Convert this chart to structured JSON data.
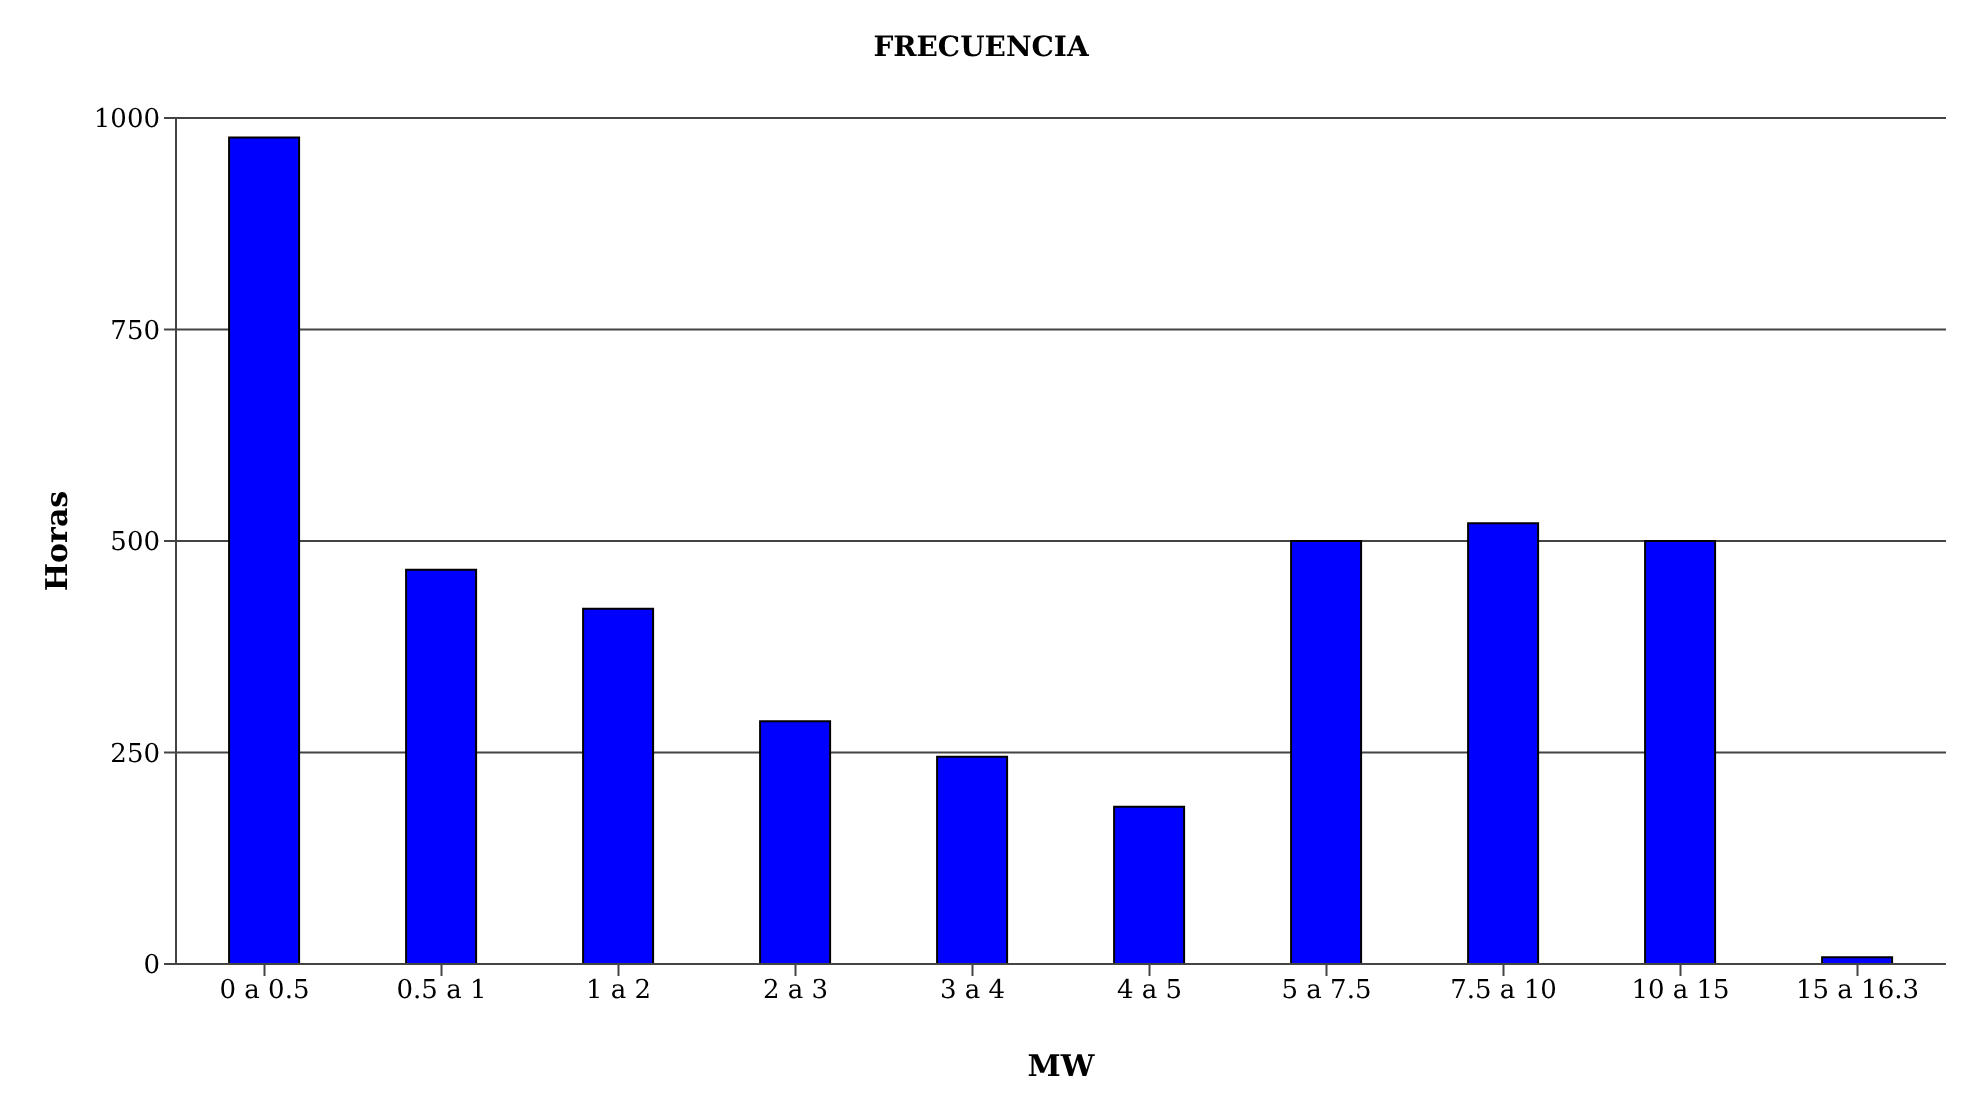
{
  "chart_data": {
    "type": "bar",
    "title": "FRECUENCIA",
    "xlabel": "MW",
    "ylabel": "Horas",
    "categories": [
      "0 a 0.5",
      "0.5 a 1",
      "1 a 2",
      "2 a 3",
      "3 a 4",
      "4 a 5",
      "5 a 7.5",
      "7.5 a 10",
      "10 a 15",
      "15 a 16.3"
    ],
    "values": [
      977,
      466,
      420,
      287,
      245,
      186,
      500,
      521,
      500,
      8
    ],
    "color": "#0000ff",
    "ylim": [
      0,
      1000
    ],
    "yticks": [
      0,
      250,
      500,
      750,
      1000
    ],
    "grid": "y",
    "legend": false
  }
}
